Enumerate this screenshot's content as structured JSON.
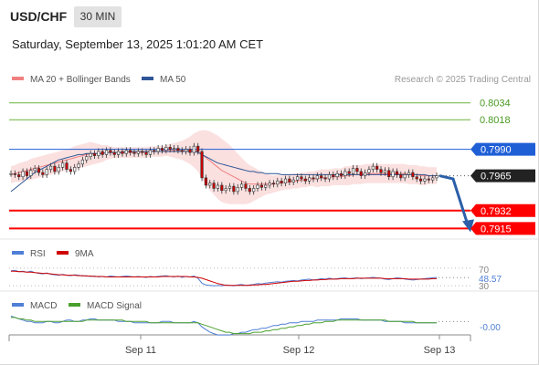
{
  "header": {
    "symbol": "USD/CHF",
    "timeframe": "30 MIN",
    "datetime": "Saturday, September 13, 2025 1:01:20 AM CET"
  },
  "legend": {
    "ma20_label": "MA 20 + Bollinger Bands",
    "ma50_label": "MA 50",
    "credit": "Research © 2025 Trading Central"
  },
  "colors": {
    "ma20": "#f08080",
    "ma50": "#2f5597",
    "band_fill": "#f9d6d6",
    "candle_up": "#333333",
    "candle_down": "#cc0000",
    "green_line": "#6cb33f",
    "blue_line": "#1f5fd6",
    "red_line": "#ff0000",
    "arrow": "#2b5fa8",
    "rsi": "#4f7fd6",
    "rsi_ma": "#d00000",
    "macd": "#4f7fd6",
    "macd_signal": "#4aa02c"
  },
  "rsi_panel": {
    "rsi_label": "RSI",
    "ma_label": "9MA",
    "level_70": "70",
    "value": "48.57",
    "level_30": "30"
  },
  "macd_panel": {
    "macd_label": "MACD",
    "signal_label": "MACD Signal",
    "value": "-0.00"
  },
  "x_axis": {
    "ticks": [
      "Sep 11",
      "Sep 12",
      "Sep 13"
    ]
  },
  "chart_data": {
    "type": "line",
    "title": "USD/CHF",
    "ylim": [
      0.7905,
      0.8045
    ],
    "levels": [
      {
        "value": 0.8034,
        "label": "0.8034",
        "color": "#6cb33f"
      },
      {
        "value": 0.8018,
        "label": "0.8018",
        "color": "#6cb33f"
      },
      {
        "value": 0.799,
        "label": "0.7990",
        "color": "#1f5fd6"
      },
      {
        "value": 0.7932,
        "label": "0.7932",
        "color": "#ff0000"
      },
      {
        "value": 0.7915,
        "label": "0.7915",
        "color": "#ff0000"
      }
    ],
    "last_price": {
      "value": 0.7965,
      "label": "0.7965"
    },
    "close": [
      0.7967,
      0.7966,
      0.7964,
      0.7969,
      0.7965,
      0.797,
      0.7972,
      0.7968,
      0.7966,
      0.7971,
      0.7974,
      0.7969,
      0.7973,
      0.7977,
      0.7971,
      0.7969,
      0.7973,
      0.7976,
      0.798,
      0.7983,
      0.7986,
      0.7984,
      0.7988,
      0.7985,
      0.7989,
      0.7987,
      0.7985,
      0.7988,
      0.7986,
      0.7989,
      0.7987,
      0.7986,
      0.7988,
      0.7987,
      0.7985,
      0.7989,
      0.7988,
      0.7991,
      0.7989,
      0.7992,
      0.799,
      0.7991,
      0.7989,
      0.7988,
      0.799,
      0.7987,
      0.7993,
      0.7988,
      0.7963,
      0.7956,
      0.7958,
      0.7953,
      0.7956,
      0.7951,
      0.7953,
      0.7955,
      0.795,
      0.7954,
      0.7957,
      0.7953,
      0.795,
      0.7953,
      0.7956,
      0.7954,
      0.7956,
      0.7958,
      0.7957,
      0.796,
      0.7958,
      0.7962,
      0.7959,
      0.7961,
      0.7964,
      0.7962,
      0.796,
      0.7963,
      0.7962,
      0.7965,
      0.7963,
      0.7962,
      0.7966,
      0.7964,
      0.7967,
      0.7965,
      0.7969,
      0.7967,
      0.7972,
      0.7969,
      0.7965,
      0.7968,
      0.7971,
      0.7974,
      0.7971,
      0.7968,
      0.797,
      0.7964,
      0.7969,
      0.7966,
      0.7963,
      0.7966,
      0.7968,
      0.7964,
      0.7962,
      0.796,
      0.7962,
      0.7961,
      0.7963,
      0.7965
    ],
    "ma50": [
      0.795,
      0.7953,
      0.7956,
      0.7959,
      0.7962,
      0.7965,
      0.7968,
      0.797,
      0.7972,
      0.7974,
      0.7976,
      0.7978,
      0.798,
      0.7981,
      0.7982,
      0.7983,
      0.7984,
      0.7985,
      0.7985,
      0.7986,
      0.7986,
      0.7986,
      0.7986,
      0.7986,
      0.7987,
      0.7987,
      0.7987,
      0.7987,
      0.7987,
      0.7988,
      0.7988,
      0.7988,
      0.7988,
      0.7988,
      0.7988,
      0.7988,
      0.7988,
      0.7988,
      0.7988,
      0.7988,
      0.7988,
      0.7988,
      0.7988,
      0.7988,
      0.7988,
      0.7988,
      0.7988,
      0.7987,
      0.7985,
      0.7983,
      0.7981,
      0.7979,
      0.7977,
      0.7976,
      0.7975,
      0.7974,
      0.7973,
      0.7972,
      0.7971,
      0.797,
      0.7969,
      0.7969,
      0.7968,
      0.7968,
      0.7967,
      0.7967,
      0.7967,
      0.7967,
      0.7966,
      0.7966,
      0.7966,
      0.7966,
      0.7966,
      0.7966,
      0.7966,
      0.7966,
      0.7966,
      0.7966,
      0.7966,
      0.7966,
      0.7966,
      0.7966,
      0.7966,
      0.7966,
      0.7966,
      0.7966,
      0.7966,
      0.7966,
      0.7966,
      0.7966,
      0.7966,
      0.7966,
      0.7966,
      0.7966,
      0.7966,
      0.7966,
      0.7966,
      0.7966,
      0.7966,
      0.7966,
      0.7966,
      0.7966,
      0.7966,
      0.7966,
      0.7966,
      0.7965,
      0.7965,
      0.7965
    ],
    "ma20": [
      0.7966,
      0.7967,
      0.7968,
      0.7969,
      0.797,
      0.7971,
      0.7972,
      0.7973,
      0.7974,
      0.7975,
      0.7976,
      0.7977,
      0.7978,
      0.7979,
      0.798,
      0.7981,
      0.7982,
      0.7983,
      0.7984,
      0.7985,
      0.7986,
      0.7986,
      0.7986,
      0.7986,
      0.7987,
      0.7987,
      0.7987,
      0.7987,
      0.7987,
      0.7987,
      0.7987,
      0.7987,
      0.7987,
      0.7987,
      0.7987,
      0.7988,
      0.7988,
      0.7988,
      0.7988,
      0.7989,
      0.7989,
      0.7989,
      0.7989,
      0.7989,
      0.7989,
      0.7989,
      0.7989,
      0.7988,
      0.7985,
      0.7982,
      0.7979,
      0.7976,
      0.7973,
      0.797,
      0.7968,
      0.7966,
      0.7964,
      0.7962,
      0.796,
      0.7958,
      0.7957,
      0.7957,
      0.7957,
      0.7957,
      0.7957,
      0.7957,
      0.7957,
      0.7958,
      0.7958,
      0.7959,
      0.7959,
      0.796,
      0.796,
      0.7961,
      0.7961,
      0.7962,
      0.7962,
      0.7962,
      0.7963,
      0.7963,
      0.7963,
      0.7964,
      0.7964,
      0.7964,
      0.7965,
      0.7965,
      0.7966,
      0.7966,
      0.7966,
      0.7967,
      0.7967,
      0.7967,
      0.7967,
      0.7967,
      0.7967,
      0.7967,
      0.7967,
      0.7967,
      0.7967,
      0.7967,
      0.7966,
      0.7966,
      0.7966,
      0.7965,
      0.7965,
      0.7965,
      0.7965,
      0.7965
    ],
    "band_width": [
      0.0008,
      0.0008,
      0.0009,
      0.0009,
      0.0009,
      0.001,
      0.001,
      0.001,
      0.001,
      0.001,
      0.001,
      0.001,
      0.001,
      0.001,
      0.001,
      0.001,
      0.0011,
      0.0011,
      0.0011,
      0.0011,
      0.0011,
      0.001,
      0.0009,
      0.0008,
      0.0007,
      0.0006,
      0.0005,
      0.0005,
      0.0005,
      0.0005,
      0.0005,
      0.0005,
      0.0005,
      0.0005,
      0.0005,
      0.0005,
      0.0005,
      0.0005,
      0.0005,
      0.0005,
      0.0006,
      0.0007,
      0.0008,
      0.0009,
      0.0011,
      0.0013,
      0.0016,
      0.0019,
      0.0023,
      0.0026,
      0.0028,
      0.0029,
      0.003,
      0.003,
      0.0029,
      0.0028,
      0.0026,
      0.0024,
      0.0022,
      0.002,
      0.0018,
      0.0016,
      0.0014,
      0.0012,
      0.001,
      0.0009,
      0.0008,
      0.0008,
      0.0007,
      0.0007,
      0.0007,
      0.0007,
      0.0007,
      0.0007,
      0.0007,
      0.0007,
      0.0007,
      0.0008,
      0.0008,
      0.0008,
      0.0008,
      0.0008,
      0.0008,
      0.0008,
      0.0009,
      0.0009,
      0.0009,
      0.0009,
      0.0009,
      0.0009,
      0.0009,
      0.0009,
      0.0009,
      0.0009,
      0.0009,
      0.0009,
      0.0009,
      0.0009,
      0.0009,
      0.0009,
      0.0009,
      0.0009,
      0.0009,
      0.0009,
      0.0009,
      0.0008,
      0.0008,
      0.0008
    ],
    "forecast": [
      0.7965,
      0.7962,
      0.7915
    ],
    "rsi": {
      "ylim": [
        20,
        80
      ],
      "rsi": [
        64,
        65,
        62,
        63,
        61,
        63,
        60,
        58,
        57,
        59,
        56,
        55,
        54,
        56,
        54,
        53,
        55,
        54,
        52,
        53,
        51,
        52,
        50,
        51,
        50,
        52,
        51,
        50,
        51,
        52,
        51,
        50,
        51,
        50,
        49,
        51,
        50,
        51,
        52,
        53,
        51,
        50,
        52,
        49,
        51,
        50,
        52,
        47,
        36,
        32,
        31,
        30,
        31,
        30,
        32,
        31,
        30,
        32,
        33,
        31,
        32,
        33,
        35,
        34,
        36,
        37,
        38,
        39,
        38,
        40,
        41,
        42,
        41,
        43,
        44,
        45,
        43,
        44,
        46,
        45,
        47,
        45,
        46,
        47,
        48,
        46,
        47,
        48,
        46,
        47,
        48,
        49,
        48,
        47,
        45,
        44,
        46,
        48,
        47,
        45,
        44,
        43,
        44,
        45,
        46,
        47,
        48,
        49
      ],
      "ma": [
        63,
        63,
        62,
        62,
        61,
        61,
        60,
        59,
        58,
        58,
        57,
        56,
        55,
        55,
        54,
        54,
        54,
        53,
        53,
        52,
        52,
        51,
        51,
        51,
        50,
        50,
        50,
        50,
        50,
        50,
        50,
        50,
        50,
        50,
        50,
        50,
        50,
        50,
        51,
        51,
        51,
        51,
        51,
        51,
        51,
        50,
        50,
        49,
        47,
        44,
        41,
        38,
        35,
        33,
        31,
        31,
        31,
        31,
        31,
        31,
        31,
        32,
        32,
        33,
        33,
        34,
        35,
        36,
        37,
        38,
        39,
        40,
        40,
        41,
        42,
        42,
        43,
        43,
        44,
        44,
        45,
        45,
        45,
        46,
        46,
        46,
        46,
        47,
        47,
        47,
        47,
        47,
        47,
        47,
        46,
        46,
        46,
        46,
        46,
        46,
        45,
        45,
        45,
        45,
        45,
        45,
        46,
        46
      ]
    },
    "macd": {
      "ylim": [
        -0.0012,
        0.0007
      ],
      "macd": [
        0.0004,
        0.0003,
        0.0002,
        0.0001,
        0.0,
        0.0,
        -0.0001,
        -0.0001,
        -0.0001,
        0.0,
        0.0,
        -0.0001,
        -0.0001,
        0.0,
        0.0001,
        0.0001,
        0.0,
        0.0,
        0.0001,
        0.0001,
        0.0002,
        0.0002,
        0.0001,
        0.0001,
        0.0001,
        0.0001,
        0.0001,
        0.0,
        0.0,
        0.0,
        0.0,
        -0.0001,
        -0.0001,
        -0.0001,
        -0.0001,
        -0.0001,
        -0.0001,
        -0.0001,
        0.0,
        0.0,
        0.0,
        -0.0001,
        -0.0001,
        -0.0001,
        -0.0001,
        -0.0001,
        0.0,
        -0.0001,
        -0.0004,
        -0.0006,
        -0.0008,
        -0.0009,
        -0.001,
        -0.001,
        -0.001,
        -0.001,
        -0.0009,
        -0.0009,
        -0.0008,
        -0.0008,
        -0.0007,
        -0.0006,
        -0.0006,
        -0.0005,
        -0.0005,
        -0.0004,
        -0.0003,
        -0.0003,
        -0.0002,
        -0.0002,
        -0.0001,
        -0.0001,
        -0.0001,
        0.0,
        0.0,
        0.0,
        0.0,
        0.0001,
        0.0001,
        0.0001,
        0.0001,
        0.0001,
        0.0001,
        0.0002,
        0.0002,
        0.0002,
        0.0002,
        0.0002,
        0.0001,
        0.0001,
        0.0001,
        0.0001,
        0.0001,
        0.0001,
        0.0,
        0.0,
        0.0,
        0.0,
        0.0,
        -0.0001,
        -0.0001,
        -0.0001,
        -0.0001,
        -0.0001,
        -0.0001,
        -0.0001,
        -0.0001,
        -0.0001
      ],
      "signal": [
        0.0003,
        0.0003,
        0.0002,
        0.0002,
        0.0001,
        0.0001,
        0.0,
        0.0,
        0.0,
        0.0,
        0.0,
        0.0,
        0.0,
        0.0,
        0.0,
        0.0,
        0.0,
        0.0,
        0.0,
        0.0001,
        0.0001,
        0.0001,
        0.0001,
        0.0001,
        0.0001,
        0.0001,
        0.0001,
        0.0001,
        0.0001,
        0.0,
        0.0,
        0.0,
        0.0,
        0.0,
        0.0,
        -0.0001,
        -0.0001,
        -0.0001,
        -0.0001,
        -0.0001,
        -0.0001,
        -0.0001,
        -0.0001,
        -0.0001,
        -0.0001,
        -0.0001,
        -0.0001,
        -0.0001,
        -0.0002,
        -0.0003,
        -0.0004,
        -0.0005,
        -0.0006,
        -0.0007,
        -0.0008,
        -0.0008,
        -0.0009,
        -0.0009,
        -0.0009,
        -0.0009,
        -0.0009,
        -0.0008,
        -0.0008,
        -0.0008,
        -0.0007,
        -0.0007,
        -0.0006,
        -0.0006,
        -0.0005,
        -0.0005,
        -0.0004,
        -0.0004,
        -0.0003,
        -0.0003,
        -0.0002,
        -0.0002,
        -0.0001,
        -0.0001,
        -0.0001,
        0.0,
        0.0,
        0.0,
        0.0001,
        0.0001,
        0.0001,
        0.0001,
        0.0001,
        0.0001,
        0.0001,
        0.0001,
        0.0001,
        0.0001,
        0.0001,
        0.0001,
        0.0001,
        0.0,
        0.0,
        0.0,
        0.0,
        0.0,
        0.0,
        0.0,
        -0.0001,
        -0.0001,
        -0.0001,
        -0.0001,
        -0.0001,
        -0.0001
      ]
    }
  }
}
